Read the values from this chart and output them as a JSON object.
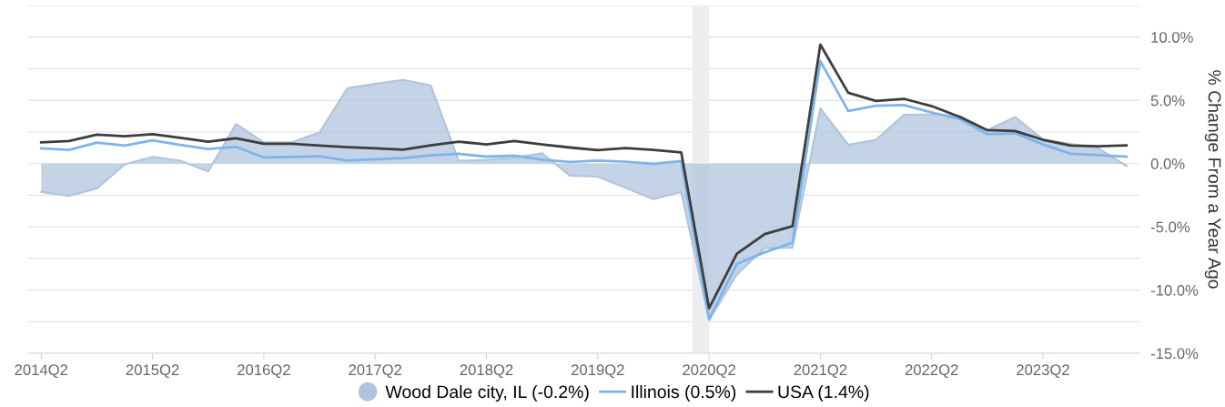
{
  "chart_data": {
    "type": "line",
    "ylabel": "% Change From a Year Ago",
    "categories": [
      "2014Q2",
      null,
      null,
      null,
      "2015Q2",
      null,
      null,
      null,
      "2016Q2",
      null,
      null,
      null,
      "2017Q2",
      null,
      null,
      null,
      "2018Q2",
      null,
      null,
      null,
      "2019Q2",
      null,
      null,
      null,
      "2020Q2",
      null,
      null,
      null,
      "2021Q2",
      null,
      null,
      null,
      "2022Q2",
      null,
      null,
      null,
      "2023Q2",
      null,
      null,
      null
    ],
    "series": [
      {
        "name": "Wood Dale city, IL (-0.2%)",
        "type": "area",
        "color": "#b0c4de",
        "values": [
          -2.24,
          -2.57,
          -1.97,
          -0.07,
          0.53,
          0.22,
          -0.63,
          3.13,
          1.68,
          1.68,
          2.45,
          5.96,
          6.3,
          6.61,
          6.18,
          0.22,
          0.29,
          0.48,
          0.82,
          -0.96,
          -1.03,
          -1.92,
          -2.81,
          -2.24,
          -12.38,
          -8.77,
          -6.68,
          -6.66,
          4.38,
          1.49,
          1.88,
          3.85,
          3.89,
          3.77,
          2.64,
          3.68,
          1.92,
          1.56,
          1.2,
          -0.19
        ]
      },
      {
        "name": "Illinois (0.5%)",
        "color": "#7cb5ec",
        "values": [
          1.2,
          1.08,
          1.66,
          1.42,
          1.83,
          1.47,
          1.15,
          1.32,
          0.48,
          0.53,
          0.58,
          0.24,
          0.34,
          0.43,
          0.65,
          0.77,
          0.55,
          0.63,
          0.31,
          0.12,
          0.24,
          0.14,
          -0.02,
          0.19,
          -12.31,
          -7.93,
          -7.02,
          -6.25,
          8.1,
          4.16,
          4.57,
          4.62,
          4.04,
          3.53,
          2.33,
          2.4,
          1.51,
          0.77,
          0.67,
          0.55
        ]
      },
      {
        "name": "USA (1.4%)",
        "color": "#3d3d3d",
        "values": [
          1.68,
          1.78,
          2.28,
          2.16,
          2.33,
          2.04,
          1.73,
          2.0,
          1.57,
          1.57,
          1.42,
          1.3,
          1.2,
          1.1,
          1.44,
          1.73,
          1.51,
          1.78,
          1.51,
          1.27,
          1.06,
          1.23,
          1.08,
          0.89,
          -11.44,
          -7.12,
          -5.58,
          -4.95,
          9.4,
          5.6,
          4.95,
          5.12,
          4.54,
          3.7,
          2.64,
          2.57,
          1.88,
          1.42,
          1.37,
          1.44
        ]
      }
    ],
    "ylim": [
      -15,
      12.5
    ],
    "yticks": [
      {
        "value": -15,
        "label": "-15.0%"
      },
      {
        "value": -12.5,
        "label": null
      },
      {
        "value": -10,
        "label": "-10.0%"
      },
      {
        "value": -7.5,
        "label": null
      },
      {
        "value": -5,
        "label": "-5.0%"
      },
      {
        "value": -2.5,
        "label": null
      },
      {
        "value": 0,
        "label": "0.0%"
      },
      {
        "value": 2.5,
        "label": null
      },
      {
        "value": 5,
        "label": "5.0%"
      },
      {
        "value": 7.5,
        "label": null
      },
      {
        "value": 10,
        "label": "10.0%"
      },
      {
        "value": 12.5,
        "label": null
      }
    ],
    "grid": "y",
    "legend": "bottom",
    "marker": "none",
    "line_style": "solid"
  }
}
